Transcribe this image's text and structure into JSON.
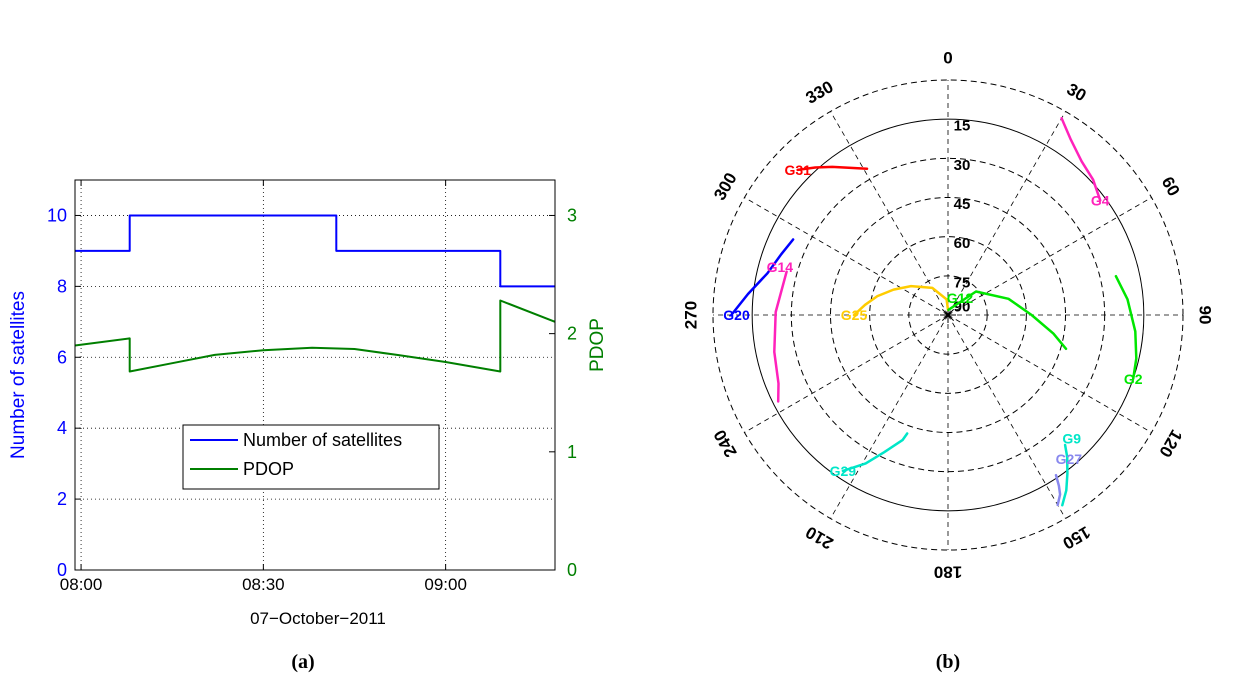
{
  "panels": {
    "a_label": "(a)",
    "b_label": "(b)"
  },
  "colors": {
    "satellites": "#0000ff",
    "pdop": "#007f00",
    "axis": "#000000",
    "grid": "#000000"
  },
  "chart_data": [
    {
      "type": "line",
      "x_tick_labels": [
        "08:00",
        "08:30",
        "09:00"
      ],
      "xlabel": "07−October−2011",
      "xlim": [
        "07:59",
        "09:18"
      ],
      "ylabel_left": "Number of satellites",
      "ylabel_right": "PDOP",
      "ylim_left": [
        0,
        11
      ],
      "ylim_right": [
        0,
        3.3
      ],
      "yticks_left": [
        0,
        2,
        4,
        6,
        8,
        10
      ],
      "yticks_right": [
        0,
        1,
        2,
        3
      ],
      "grid": true,
      "legend_position": "lower-center",
      "series": [
        {
          "name": "Number of satellites",
          "axis": "left",
          "color": "#0000ff",
          "step": true,
          "x": [
            "07:59",
            "08:08",
            "08:08",
            "08:42",
            "08:42",
            "09:09",
            "09:09",
            "09:18"
          ],
          "y": [
            9,
            9,
            10,
            10,
            9,
            9,
            8,
            8
          ]
        },
        {
          "name": "PDOP",
          "axis": "right",
          "color": "#007f00",
          "x": [
            "07:59",
            "08:08",
            "08:08",
            "08:15",
            "08:22",
            "08:30",
            "08:38",
            "08:45",
            "08:52",
            "09:00",
            "09:09",
            "09:09",
            "09:18"
          ],
          "y": [
            1.9,
            1.96,
            1.68,
            1.75,
            1.82,
            1.86,
            1.88,
            1.87,
            1.82,
            1.76,
            1.68,
            2.28,
            2.1
          ]
        }
      ]
    },
    {
      "type": "scatter",
      "subtype": "polar skyplot",
      "azimuth_labels": [
        "0",
        "30",
        "60",
        "90",
        "120",
        "150",
        "180",
        "210",
        "240",
        "270",
        "300",
        "330"
      ],
      "elevation_labels": [
        "15",
        "30",
        "45",
        "60",
        "75",
        "90"
      ],
      "elevation_rings": [
        0,
        15,
        30,
        45,
        60,
        75
      ],
      "series": [
        {
          "name": "G31",
          "color": "#ff0000",
          "label": {
            "az": 314,
            "el": 10
          },
          "az": [
            314,
            318,
            322,
            326,
            331
          ],
          "el": [
            10,
            14,
            18,
            22,
            26
          ]
        },
        {
          "name": "G4",
          "color": "#ff22bb",
          "label": {
            "az": 53,
            "el": 17
          },
          "az": [
            30,
            35,
            41,
            47,
            53
          ],
          "el": [
            3,
            8,
            12,
            14,
            17
          ]
        },
        {
          "name": "G14",
          "color": "#ff22bb",
          "label": {
            "az": 286,
            "el": 23
          },
          "az": [
            285,
            271,
            258,
            248,
            243
          ],
          "el": [
            26,
            24,
            22,
            20,
            17
          ]
        },
        {
          "name": "G20",
          "color": "#0000ff",
          "label": {
            "az": 270,
            "el": 9
          },
          "az": [
            270,
            276,
            283,
            290,
            296
          ],
          "el": [
            7,
            13,
            19,
            22,
            24
          ]
        },
        {
          "name": "G25",
          "color": "#ffcc00",
          "label": {
            "az": 270,
            "el": 54
          },
          "az": [
            270,
            277,
            285,
            295,
            308,
            330,
            355,
            360
          ],
          "el": [
            54,
            58,
            62,
            67,
            72,
            78,
            84,
            88
          ]
        },
        {
          "name": "G12",
          "color": "#00e600",
          "label": {
            "az": 35,
            "el": 82
          },
          "az": [
            5,
            50,
            75,
            90,
            100,
            106
          ],
          "el": [
            88,
            76,
            66,
            58,
            49,
            43
          ]
        },
        {
          "name": "G2",
          "color": "#00e600",
          "label": {
            "az": 109,
            "el": 15
          },
          "az": [
            77,
            85,
            95,
            103,
            109
          ],
          "el": [
            24,
            21,
            18,
            16,
            15
          ]
        },
        {
          "name": "G9",
          "color": "#00e6c8",
          "label": {
            "az": 135,
            "el": 23
          },
          "az": [
            138,
            140,
            143,
            146,
            149
          ],
          "el": [
            23,
            19,
            14,
            9,
            5
          ]
        },
        {
          "name": "G27",
          "color": "#8888ee",
          "label": {
            "az": 140,
            "el": 18
          },
          "az": [
            146,
            147,
            148,
            150
          ],
          "el": [
            16,
            12,
            9,
            6
          ]
        },
        {
          "name": "G29",
          "color": "#00e6c8",
          "label": {
            "az": 214,
            "el": 18
          },
          "az": [
            214,
            209,
            205,
            200,
            199
          ],
          "el": [
            18,
            25,
            32,
            39,
            42
          ]
        }
      ]
    }
  ]
}
